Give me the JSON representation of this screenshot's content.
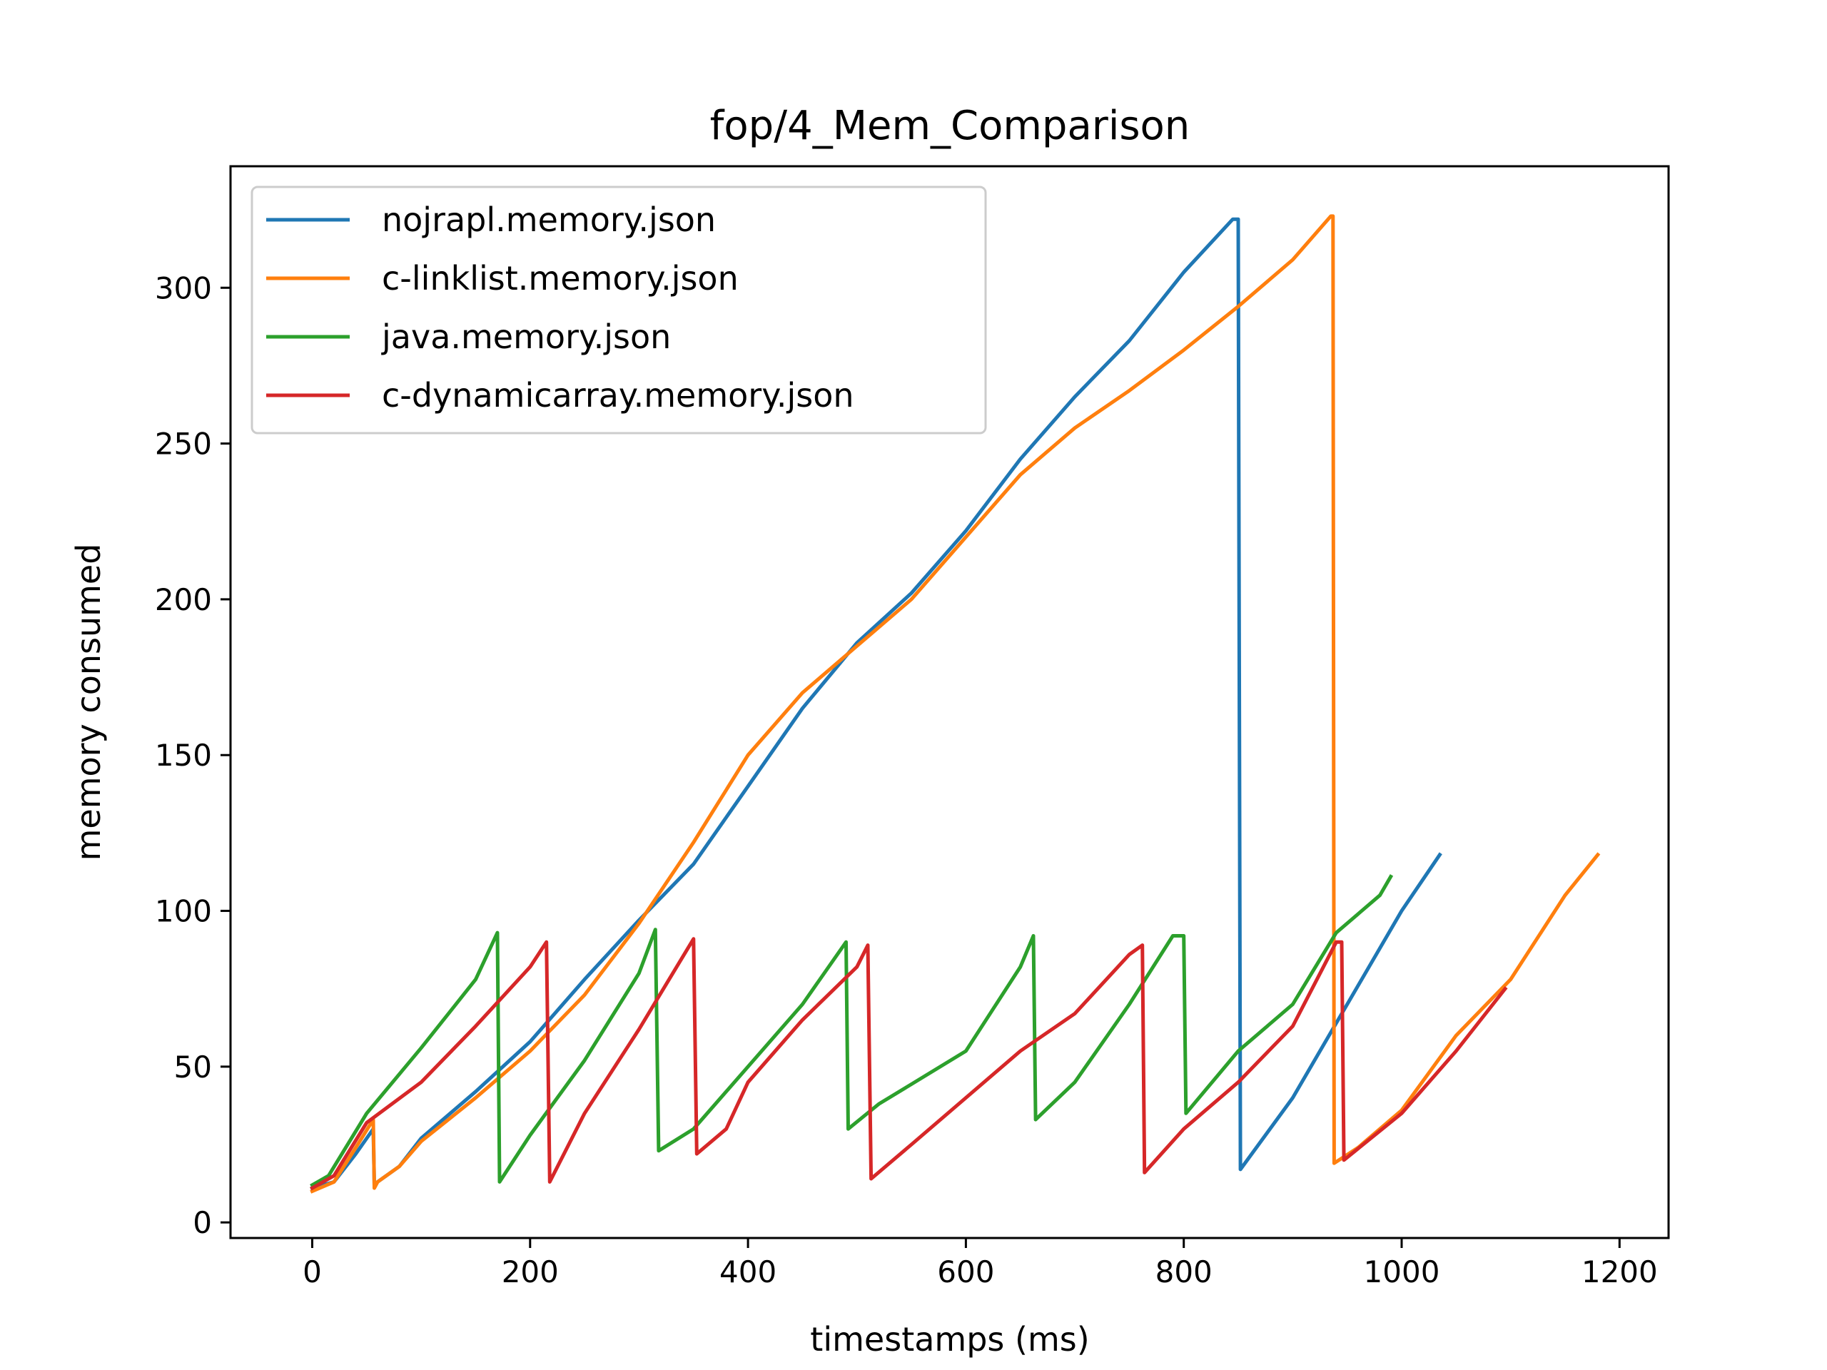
{
  "chart_data": {
    "type": "line",
    "title": "fop/4_Mem_Comparison",
    "xlabel": "timestamps (ms)",
    "ylabel": "memory consumed",
    "xlim": [
      -75,
      1245
    ],
    "ylim": [
      -5,
      339
    ],
    "xticks": [
      0,
      200,
      400,
      600,
      800,
      1000,
      1200
    ],
    "yticks": [
      0,
      50,
      100,
      150,
      200,
      250,
      300
    ],
    "grid": false,
    "legend_position": "upper-left",
    "series": [
      {
        "name": "nojrapl.memory.json",
        "color": "#1f77b4",
        "points": [
          [
            0,
            11
          ],
          [
            20,
            13
          ],
          [
            40,
            22
          ],
          [
            56,
            30
          ],
          [
            57,
            12
          ],
          [
            60,
            13
          ],
          [
            80,
            18
          ],
          [
            100,
            27
          ],
          [
            150,
            42
          ],
          [
            200,
            58
          ],
          [
            250,
            78
          ],
          [
            300,
            97
          ],
          [
            350,
            115
          ],
          [
            400,
            140
          ],
          [
            450,
            165
          ],
          [
            500,
            186
          ],
          [
            550,
            202
          ],
          [
            600,
            222
          ],
          [
            650,
            245
          ],
          [
            700,
            265
          ],
          [
            750,
            283
          ],
          [
            800,
            305
          ],
          [
            845,
            322
          ],
          [
            850,
            322
          ],
          [
            852,
            17
          ],
          [
            900,
            40
          ],
          [
            950,
            70
          ],
          [
            1000,
            100
          ],
          [
            1035,
            118
          ]
        ]
      },
      {
        "name": "c-linklist.memory.json",
        "color": "#ff7f0e",
        "points": [
          [
            0,
            10
          ],
          [
            20,
            13
          ],
          [
            40,
            24
          ],
          [
            56,
            33
          ],
          [
            57,
            11
          ],
          [
            60,
            13
          ],
          [
            80,
            18
          ],
          [
            100,
            26
          ],
          [
            150,
            40
          ],
          [
            200,
            55
          ],
          [
            250,
            73
          ],
          [
            300,
            96
          ],
          [
            350,
            122
          ],
          [
            400,
            150
          ],
          [
            450,
            170
          ],
          [
            500,
            185
          ],
          [
            550,
            200
          ],
          [
            600,
            220
          ],
          [
            650,
            240
          ],
          [
            700,
            255
          ],
          [
            750,
            267
          ],
          [
            800,
            280
          ],
          [
            850,
            294
          ],
          [
            900,
            309
          ],
          [
            935,
            323
          ],
          [
            937,
            323
          ],
          [
            938,
            19
          ],
          [
            960,
            24
          ],
          [
            1000,
            36
          ],
          [
            1050,
            60
          ],
          [
            1100,
            78
          ],
          [
            1150,
            105
          ],
          [
            1180,
            118
          ]
        ]
      },
      {
        "name": "java.memory.json",
        "color": "#2ca02c",
        "points": [
          [
            0,
            12
          ],
          [
            15,
            15
          ],
          [
            50,
            35
          ],
          [
            100,
            56
          ],
          [
            150,
            78
          ],
          [
            170,
            93
          ],
          [
            172,
            13
          ],
          [
            200,
            28
          ],
          [
            250,
            52
          ],
          [
            300,
            80
          ],
          [
            315,
            94
          ],
          [
            318,
            23
          ],
          [
            350,
            30
          ],
          [
            400,
            50
          ],
          [
            450,
            70
          ],
          [
            490,
            90
          ],
          [
            492,
            30
          ],
          [
            520,
            38
          ],
          [
            600,
            55
          ],
          [
            650,
            82
          ],
          [
            662,
            92
          ],
          [
            664,
            33
          ],
          [
            700,
            45
          ],
          [
            750,
            70
          ],
          [
            790,
            92
          ],
          [
            800,
            92
          ],
          [
            802,
            35
          ],
          [
            850,
            55
          ],
          [
            900,
            70
          ],
          [
            940,
            93
          ],
          [
            980,
            105
          ],
          [
            990,
            111
          ]
        ]
      },
      {
        "name": "c-dynamicarray.memory.json",
        "color": "#d62728",
        "points": [
          [
            0,
            11
          ],
          [
            20,
            15
          ],
          [
            50,
            32
          ],
          [
            100,
            45
          ],
          [
            150,
            63
          ],
          [
            200,
            82
          ],
          [
            215,
            90
          ],
          [
            218,
            13
          ],
          [
            250,
            35
          ],
          [
            300,
            62
          ],
          [
            350,
            91
          ],
          [
            353,
            22
          ],
          [
            380,
            30
          ],
          [
            400,
            45
          ],
          [
            450,
            65
          ],
          [
            500,
            82
          ],
          [
            510,
            89
          ],
          [
            513,
            14
          ],
          [
            550,
            25
          ],
          [
            600,
            40
          ],
          [
            650,
            55
          ],
          [
            700,
            67
          ],
          [
            750,
            86
          ],
          [
            762,
            89
          ],
          [
            764,
            16
          ],
          [
            800,
            30
          ],
          [
            850,
            45
          ],
          [
            900,
            63
          ],
          [
            940,
            90
          ],
          [
            945,
            90
          ],
          [
            947,
            20
          ],
          [
            1000,
            35
          ],
          [
            1050,
            55
          ],
          [
            1095,
            75
          ]
        ]
      }
    ]
  }
}
